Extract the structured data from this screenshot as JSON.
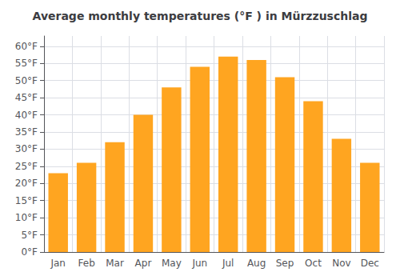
{
  "chart_data": {
    "type": "bar",
    "title": "Average monthly temperatures (°F ) in Mürzzuschlag",
    "categories": [
      "Jan",
      "Feb",
      "Mar",
      "Apr",
      "May",
      "Jun",
      "Jul",
      "Aug",
      "Sep",
      "Oct",
      "Nov",
      "Dec"
    ],
    "values": [
      23,
      26,
      32,
      40,
      48,
      54,
      57,
      56,
      51,
      44,
      33,
      26
    ],
    "color": "#FFA520",
    "ylim": [
      0,
      63
    ],
    "yticks": [
      {
        "value": 0,
        "label": "0°F"
      },
      {
        "value": 5,
        "label": "5°F"
      },
      {
        "value": 10,
        "label": "10°F"
      },
      {
        "value": 15,
        "label": "15°F"
      },
      {
        "value": 20,
        "label": "20°F"
      },
      {
        "value": 25,
        "label": "25°F"
      },
      {
        "value": 30,
        "label": "30°F"
      },
      {
        "value": 35,
        "label": "35°F"
      },
      {
        "value": 40,
        "label": "40°F"
      },
      {
        "value": 45,
        "label": "45°F"
      },
      {
        "value": 50,
        "label": "50°F"
      },
      {
        "value": 55,
        "label": "55°F"
      },
      {
        "value": 60,
        "label": "60°F"
      }
    ],
    "grid": true
  }
}
